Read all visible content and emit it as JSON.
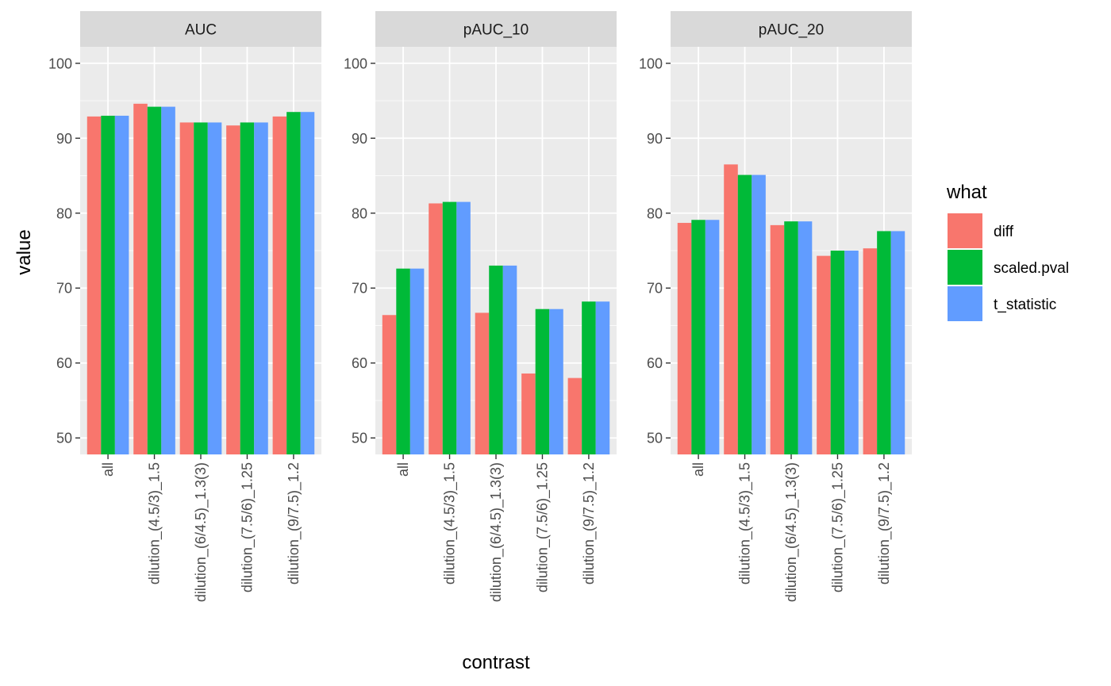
{
  "chart_data": {
    "type": "bar",
    "facets": [
      "AUC",
      "pAUC_10",
      "pAUC_20"
    ],
    "categories": [
      "all",
      "dilution_(4.5/3)_1.5",
      "dilution_(6/4.5)_1.3(3)",
      "dilution_(7.5/6)_1.25",
      "dilution_(9/7.5)_1.2"
    ],
    "series": [
      {
        "name": "diff",
        "color": "#F8766D",
        "values": {
          "AUC": [
            92.9,
            94.6,
            92.1,
            91.7,
            92.9
          ],
          "pAUC_10": [
            66.4,
            81.3,
            66.7,
            58.6,
            58.0
          ],
          "pAUC_20": [
            78.7,
            86.5,
            78.4,
            74.3,
            75.3
          ]
        }
      },
      {
        "name": "scaled.pval",
        "color": "#00BA38",
        "values": {
          "AUC": [
            93.0,
            94.2,
            92.1,
            92.1,
            93.5
          ],
          "pAUC_10": [
            72.6,
            81.5,
            73.0,
            67.2,
            68.2
          ],
          "pAUC_20": [
            79.1,
            85.1,
            78.9,
            75.0,
            77.6
          ]
        }
      },
      {
        "name": "t_statistic",
        "color": "#619CFF",
        "values": {
          "AUC": [
            93.0,
            94.2,
            92.1,
            92.1,
            93.5
          ],
          "pAUC_10": [
            72.6,
            81.5,
            73.0,
            67.2,
            68.2
          ],
          "pAUC_20": [
            79.1,
            85.1,
            78.9,
            75.0,
            77.6
          ]
        }
      }
    ],
    "xlabel": "contrast",
    "ylabel": "value",
    "yticks": [
      50,
      60,
      70,
      80,
      90,
      100
    ],
    "ylim": [
      47.8,
      102.2
    ],
    "legend_title": "what",
    "legend_placement": "right",
    "grid": true,
    "colors": {
      "panel_bg": "#EBEBEB",
      "strip_bg": "#D9D9D9",
      "grid": "#FFFFFF"
    }
  }
}
